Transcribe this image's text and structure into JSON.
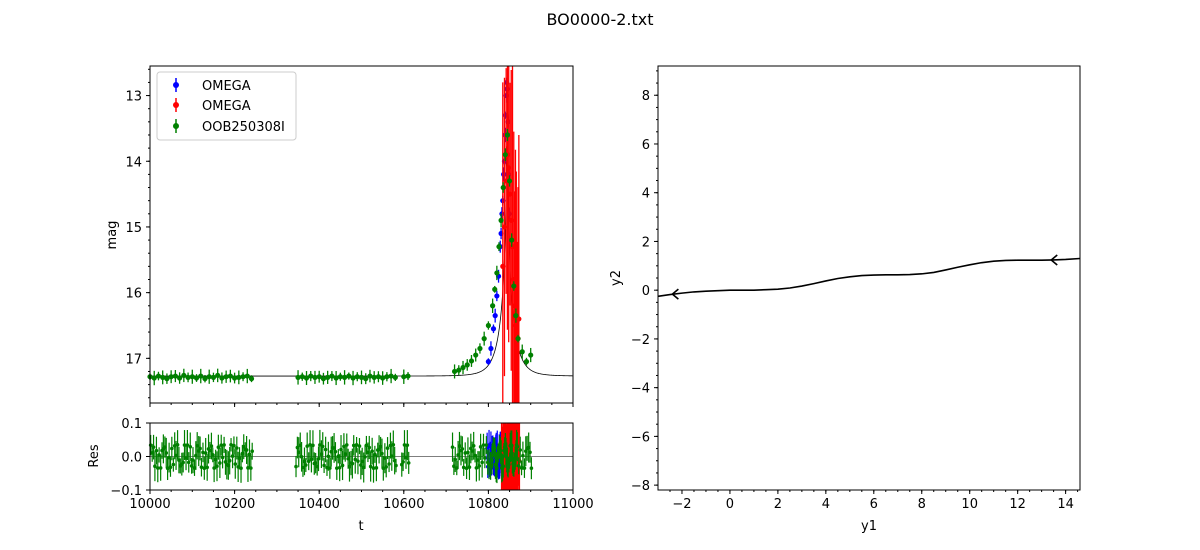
{
  "figure": {
    "title": "BO0000-2.txt"
  },
  "colors": {
    "blue": "#0000ff",
    "red": "#ff0000",
    "green": "#008000",
    "model": "#000000"
  },
  "chart_data": [
    {
      "id": "lightcurve",
      "type": "scatter",
      "xlabel": "",
      "ylabel": "mag",
      "xlim": [
        10000,
        11000
      ],
      "ylim": [
        17.68,
        12.55
      ],
      "y_inverted": true,
      "yticks": [
        13,
        14,
        15,
        16,
        17
      ],
      "legend": "upper-left",
      "legend_entries": [
        "OMEGA",
        "OMEGA",
        "OOB250308I"
      ],
      "model": {
        "baseline": 17.27,
        "t0": 10844,
        "tE": 32,
        "u0": 0.04
      },
      "series": [
        {
          "name": "OMEGA",
          "color": "blue",
          "x": [
            10800,
            10806,
            10812,
            10816,
            10820,
            10824,
            10828,
            10830,
            10832,
            10834,
            10836,
            10838,
            10840,
            10841,
            10842,
            10843,
            10844,
            10846,
            10848,
            10850
          ],
          "y": [
            17.05,
            16.85,
            16.55,
            16.35,
            16.05,
            15.75,
            15.3,
            15.1,
            14.8,
            14.6,
            14.2,
            14.0,
            13.6,
            13.3,
            13.0,
            12.8,
            12.9,
            13.4,
            14.2,
            14.8
          ]
        },
        {
          "name": "OMEGA",
          "color": "red",
          "x": [
            10834,
            10838,
            10842,
            10845,
            10848,
            10851,
            10854,
            10857,
            10860,
            10862,
            10864,
            10866,
            10868,
            10870,
            10872
          ],
          "y": [
            15.6,
            15.0,
            14.3,
            13.9,
            14.1,
            14.5,
            14.9,
            15.3,
            15.8,
            16.2,
            16.5,
            16.8,
            16.9,
            16.7,
            16.4
          ],
          "err_max": 2.8
        },
        {
          "name": "OOB250308I",
          "color": "green",
          "x": [
            10000,
            10010,
            10020,
            10030,
            10040,
            10050,
            10060,
            10070,
            10080,
            10090,
            10100,
            10110,
            10120,
            10130,
            10140,
            10150,
            10160,
            10170,
            10180,
            10190,
            10200,
            10210,
            10220,
            10230,
            10240,
            10350,
            10360,
            10370,
            10380,
            10390,
            10400,
            10410,
            10420,
            10430,
            10440,
            10450,
            10460,
            10470,
            10480,
            10490,
            10500,
            10510,
            10520,
            10530,
            10540,
            10550,
            10560,
            10570,
            10580,
            10600,
            10610,
            10720,
            10730,
            10740,
            10750,
            10760,
            10770,
            10780,
            10790,
            10800,
            10810,
            10815,
            10820,
            10825,
            10830,
            10835,
            10840,
            10845,
            10850,
            10855,
            10860,
            10865,
            10870,
            10880,
            10890,
            10900
          ],
          "y": [
            17.28,
            17.3,
            17.27,
            17.29,
            17.31,
            17.28,
            17.27,
            17.3,
            17.26,
            17.29,
            17.28,
            17.3,
            17.27,
            17.31,
            17.28,
            17.29,
            17.26,
            17.3,
            17.28,
            17.27,
            17.3,
            17.29,
            17.28,
            17.27,
            17.31,
            17.29,
            17.28,
            17.3,
            17.27,
            17.29,
            17.28,
            17.31,
            17.29,
            17.27,
            17.3,
            17.28,
            17.29,
            17.27,
            17.3,
            17.28,
            17.29,
            17.31,
            17.27,
            17.29,
            17.28,
            17.3,
            17.28,
            17.27,
            17.29,
            17.28,
            17.27,
            17.2,
            17.18,
            17.14,
            17.1,
            17.04,
            16.95,
            16.85,
            16.7,
            16.5,
            16.2,
            15.95,
            15.7,
            15.3,
            14.9,
            14.4,
            13.9,
            13.6,
            14.3,
            15.2,
            15.9,
            16.35,
            16.7,
            16.9,
            17.05,
            16.95
          ]
        }
      ]
    },
    {
      "id": "residuals",
      "type": "scatter",
      "xlabel": "t",
      "ylabel": "Res",
      "xlim": [
        10000,
        11000
      ],
      "ylim": [
        -0.1,
        0.1
      ],
      "xticks": [
        10000,
        10200,
        10400,
        10600,
        10800,
        11000
      ],
      "yticks": [
        -0.1,
        0.0,
        0.1
      ]
    },
    {
      "id": "trajectory",
      "type": "line",
      "xlabel": "y1",
      "ylabel": "y2",
      "xlim": [
        -3,
        14.6
      ],
      "ylim": [
        -8.2,
        9.2
      ],
      "xticks": [
        -2,
        0,
        2,
        4,
        6,
        8,
        10,
        12,
        14
      ],
      "yticks": [
        -8,
        -6,
        -4,
        -2,
        0,
        2,
        4,
        6,
        8
      ],
      "x": [
        -3,
        -2.5,
        -2,
        -1.5,
        -1,
        -0.5,
        0,
        0.5,
        1,
        1.5,
        2,
        2.5,
        3,
        3.5,
        4,
        4.5,
        5,
        5.5,
        6,
        6.5,
        7,
        7.5,
        8,
        8.5,
        9,
        9.5,
        10,
        10.5,
        11,
        11.5,
        12,
        12.5,
        13,
        13.5,
        14,
        14.6
      ],
      "y": [
        -0.25,
        -0.18,
        -0.12,
        -0.07,
        -0.04,
        -0.02,
        0.0,
        0.0,
        0.0,
        0.02,
        0.04,
        0.09,
        0.17,
        0.27,
        0.38,
        0.48,
        0.55,
        0.6,
        0.62,
        0.63,
        0.63,
        0.64,
        0.67,
        0.73,
        0.83,
        0.94,
        1.04,
        1.13,
        1.19,
        1.22,
        1.23,
        1.23,
        1.23,
        1.24,
        1.26,
        1.3
      ],
      "arrows": [
        {
          "x": 13.4,
          "y": 1.24,
          "direction": "left"
        },
        {
          "x": -2.4,
          "y": -0.16,
          "direction": "left"
        }
      ]
    }
  ]
}
